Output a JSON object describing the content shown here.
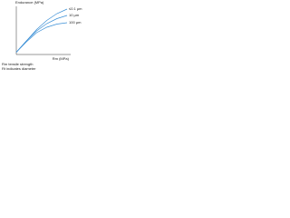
{
  "chart_data": {
    "type": "line",
    "title": "Endurance (MPa)",
    "x_label": "Rm (MPa)",
    "x": [
      0,
      20,
      40,
      60,
      80,
      100
    ],
    "xlim": [
      0,
      100
    ],
    "ylim": [
      0,
      100
    ],
    "series": [
      {
        "name": "≤0.1 µm",
        "color": "#3a8fd6",
        "values": [
          5,
          30,
          55,
          75,
          90,
          100
        ]
      },
      {
        "name": "10 µm",
        "color": "#3a8fd6",
        "values": [
          5,
          30,
          52,
          68,
          79,
          86
        ]
      },
      {
        "name": "100 µm",
        "color": "#3a8fd6",
        "values": [
          5,
          28,
          48,
          60,
          67,
          70
        ]
      }
    ],
    "notes": [
      "Rm   tensile strength",
      "Rt   indicates diameter"
    ]
  }
}
